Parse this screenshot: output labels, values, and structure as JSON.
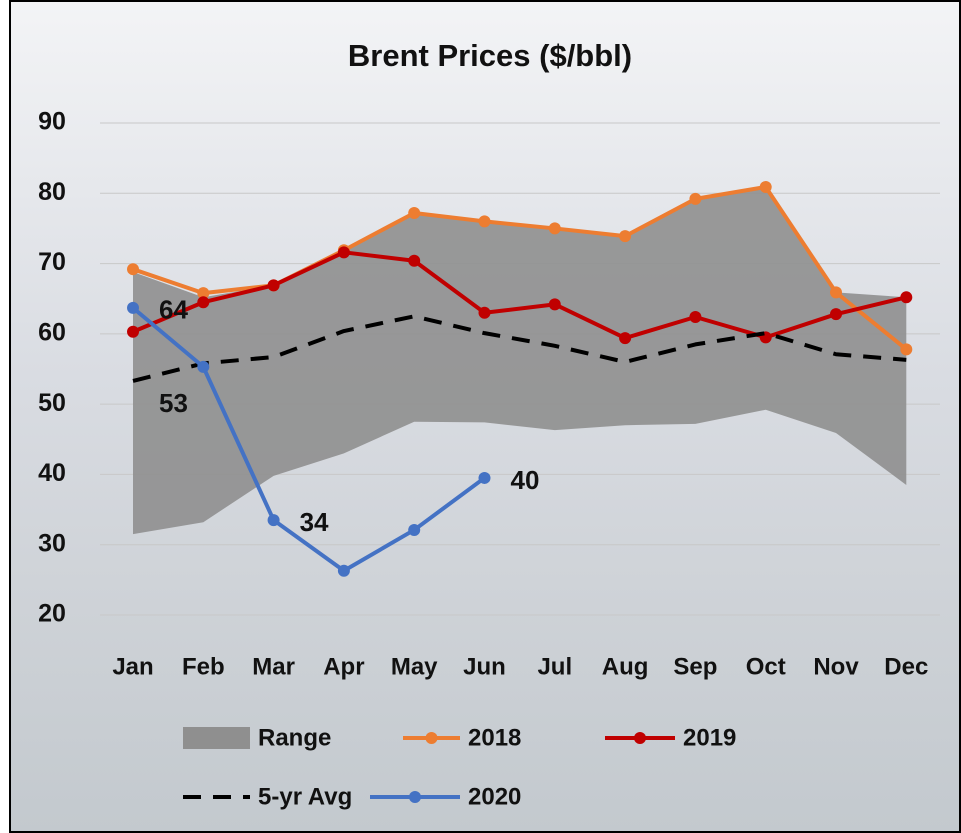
{
  "chart_data": {
    "type": "line",
    "title": "Brent Prices ($/bbl)",
    "categories": [
      "Jan",
      "Feb",
      "Mar",
      "Apr",
      "May",
      "Jun",
      "Jul",
      "Aug",
      "Sep",
      "Oct",
      "Nov",
      "Dec"
    ],
    "ylim": [
      20,
      90
    ],
    "yticks": [
      20,
      30,
      40,
      50,
      60,
      70,
      80,
      90
    ],
    "grid": true,
    "legend": "bottom",
    "range": {
      "name": "Range",
      "color": "#8f8f8f",
      "high": [
        68.8,
        65.2,
        66.9,
        71.9,
        77.2,
        76.0,
        75.0,
        73.9,
        79.2,
        80.9,
        65.9,
        65.2
      ],
      "low": [
        31.5,
        33.2,
        39.8,
        43.0,
        47.5,
        47.4,
        46.3,
        47.0,
        47.2,
        49.2,
        45.9,
        38.5
      ]
    },
    "series": [
      {
        "name": "2018",
        "color": "#ED7D31",
        "values": [
          69.2,
          65.8,
          66.9,
          71.9,
          77.2,
          76.0,
          75.0,
          73.9,
          79.2,
          80.9,
          65.9,
          57.8
        ]
      },
      {
        "name": "2019",
        "color": "#C00000",
        "values": [
          60.3,
          64.5,
          66.9,
          71.6,
          70.4,
          63.0,
          64.2,
          59.4,
          62.4,
          59.5,
          62.8,
          65.2
        ]
      },
      {
        "name": "5-yr Avg",
        "color": "#000000",
        "dashed": true,
        "values": [
          53.3,
          55.8,
          56.7,
          60.4,
          62.5,
          60.1,
          58.3,
          56.0,
          58.5,
          60.1,
          57.1,
          56.3
        ],
        "value_labels": [
          "53",
          null,
          null,
          null,
          null,
          null,
          null,
          null,
          null,
          null,
          null,
          null
        ]
      },
      {
        "name": "2020",
        "color": "#4472C4",
        "markers": true,
        "values": [
          63.7,
          55.3,
          33.5,
          26.3,
          32.1,
          39.5,
          null,
          null,
          null,
          null,
          null,
          null
        ],
        "value_labels": [
          "64",
          null,
          "34",
          null,
          null,
          "40",
          null,
          null,
          null,
          null,
          null,
          null
        ]
      }
    ]
  }
}
